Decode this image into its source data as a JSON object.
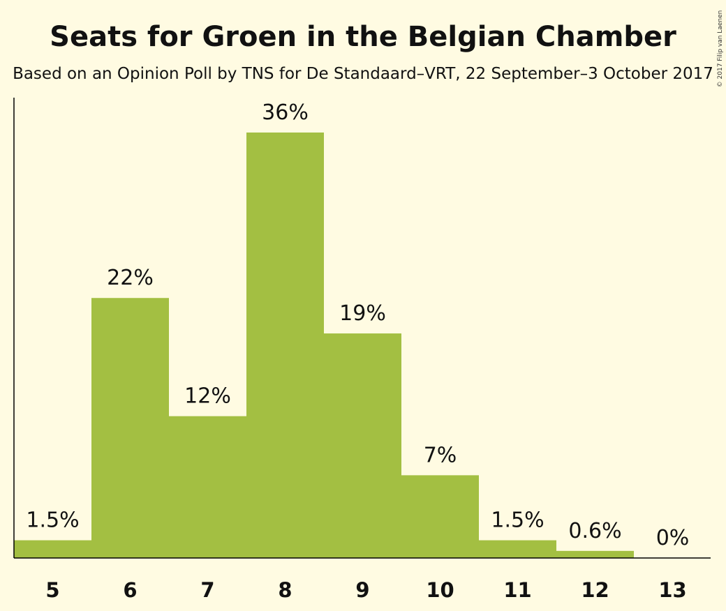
{
  "chart_data": {
    "type": "bar",
    "title": "Seats for Groen in the Belgian Chamber",
    "subtitle": "Based on an Opinion Poll by TNS for De Standaard–VRT, 22 September–3 October 2017",
    "copyright": "© 2017 Filip van Laenen",
    "categories": [
      "5",
      "6",
      "7",
      "8",
      "9",
      "10",
      "11",
      "12",
      "13"
    ],
    "values": [
      1.5,
      22,
      12,
      36,
      19,
      7,
      1.5,
      0.6,
      0
    ],
    "data_labels": [
      "1.5%",
      "22%",
      "12%",
      "36%",
      "19%",
      "7%",
      "1.5%",
      "0.6%",
      "0%"
    ],
    "xlabel": "",
    "ylabel": "",
    "ylim": [
      0,
      36
    ],
    "grid": false,
    "legend": "none",
    "bar_color": "#a3bf42",
    "background_color": "#fffbe2"
  }
}
